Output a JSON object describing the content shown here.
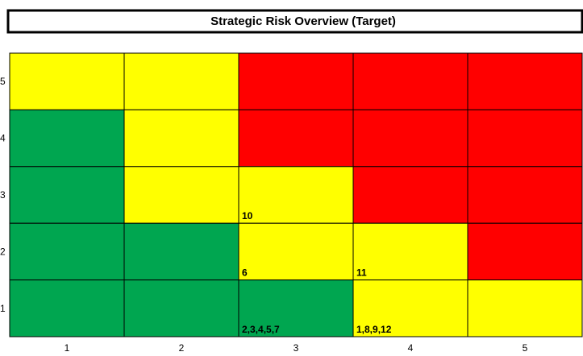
{
  "title": "Strategic Risk Overview (Target)",
  "grid": {
    "rows": [
      {
        "label": "5",
        "cells": [
          {
            "color": "#ffff00"
          },
          {
            "color": "#ffff00"
          },
          {
            "color": "#ff0000"
          },
          {
            "color": "#ff0000"
          },
          {
            "color": "#ff0000"
          }
        ]
      },
      {
        "label": "4",
        "cells": [
          {
            "color": "#00a650"
          },
          {
            "color": "#ffff00"
          },
          {
            "color": "#ff0000"
          },
          {
            "color": "#ff0000"
          },
          {
            "color": "#ff0000"
          }
        ]
      },
      {
        "label": "3",
        "cells": [
          {
            "color": "#00a650"
          },
          {
            "color": "#ffff00"
          },
          {
            "color": "#ffff00",
            "text": "10"
          },
          {
            "color": "#ff0000"
          },
          {
            "color": "#ff0000"
          }
        ]
      },
      {
        "label": "2",
        "cells": [
          {
            "color": "#00a650"
          },
          {
            "color": "#00a650"
          },
          {
            "color": "#ffff00",
            "text": "6"
          },
          {
            "color": "#ffff00",
            "text": "11"
          },
          {
            "color": "#ff0000"
          }
        ]
      },
      {
        "label": "1",
        "cells": [
          {
            "color": "#00a650"
          },
          {
            "color": "#00a650"
          },
          {
            "color": "#00a650",
            "text": "2,3,4,5,7"
          },
          {
            "color": "#ffff00",
            "text": "1,8,9,12"
          },
          {
            "color": "#ffff00"
          }
        ]
      }
    ],
    "column_labels": [
      "1",
      "2",
      "3",
      "4",
      "5"
    ]
  }
}
